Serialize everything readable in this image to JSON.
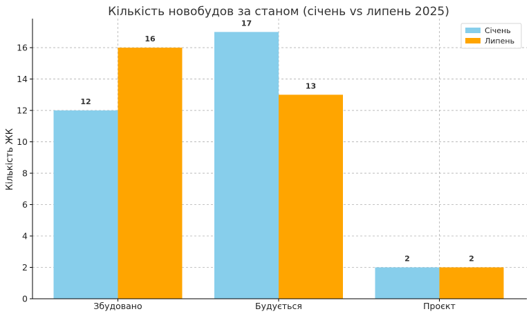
{
  "chart_data": {
    "type": "bar",
    "title": "Кількість новобудов за станом (січень vs липень 2025)",
    "xlabel": "",
    "ylabel": "Кількість ЖК",
    "categories": [
      "Збудовано",
      "Будується",
      "Проєкт"
    ],
    "series": [
      {
        "name": "Січень",
        "color": "#87CEEB",
        "values": [
          12,
          17,
          2
        ]
      },
      {
        "name": "Липень",
        "color": "#FFA500",
        "values": [
          16,
          13,
          2
        ]
      }
    ],
    "ylim": [
      0,
      17.85
    ],
    "yticks": [
      0,
      2,
      4,
      6,
      8,
      10,
      12,
      14,
      16
    ],
    "grid": true,
    "legend_position": "top-right"
  }
}
